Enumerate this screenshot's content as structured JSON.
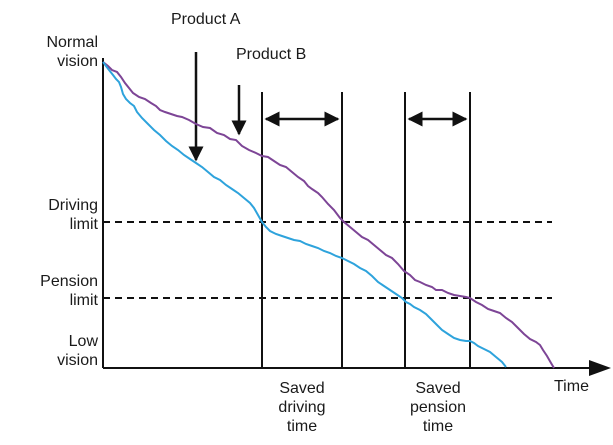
{
  "labels": {
    "product_a": "Product A",
    "product_b": "Product B",
    "normal_vision": [
      "Normal",
      "vision"
    ],
    "driving_limit": [
      "Driving",
      "limit"
    ],
    "pension_limit": [
      "Pension",
      "limit"
    ],
    "low_vision": [
      "Low",
      "vision"
    ],
    "time_axis": "Time",
    "saved_driving_time": [
      "Saved",
      "driving",
      "time"
    ],
    "saved_pension_time": [
      "Saved",
      "pension",
      "time"
    ]
  },
  "colors": {
    "product_a_curve": "#2ea3dc",
    "product_b_curve": "#7d4596",
    "axis": "#111111",
    "marker_lines": "#111111"
  }
}
